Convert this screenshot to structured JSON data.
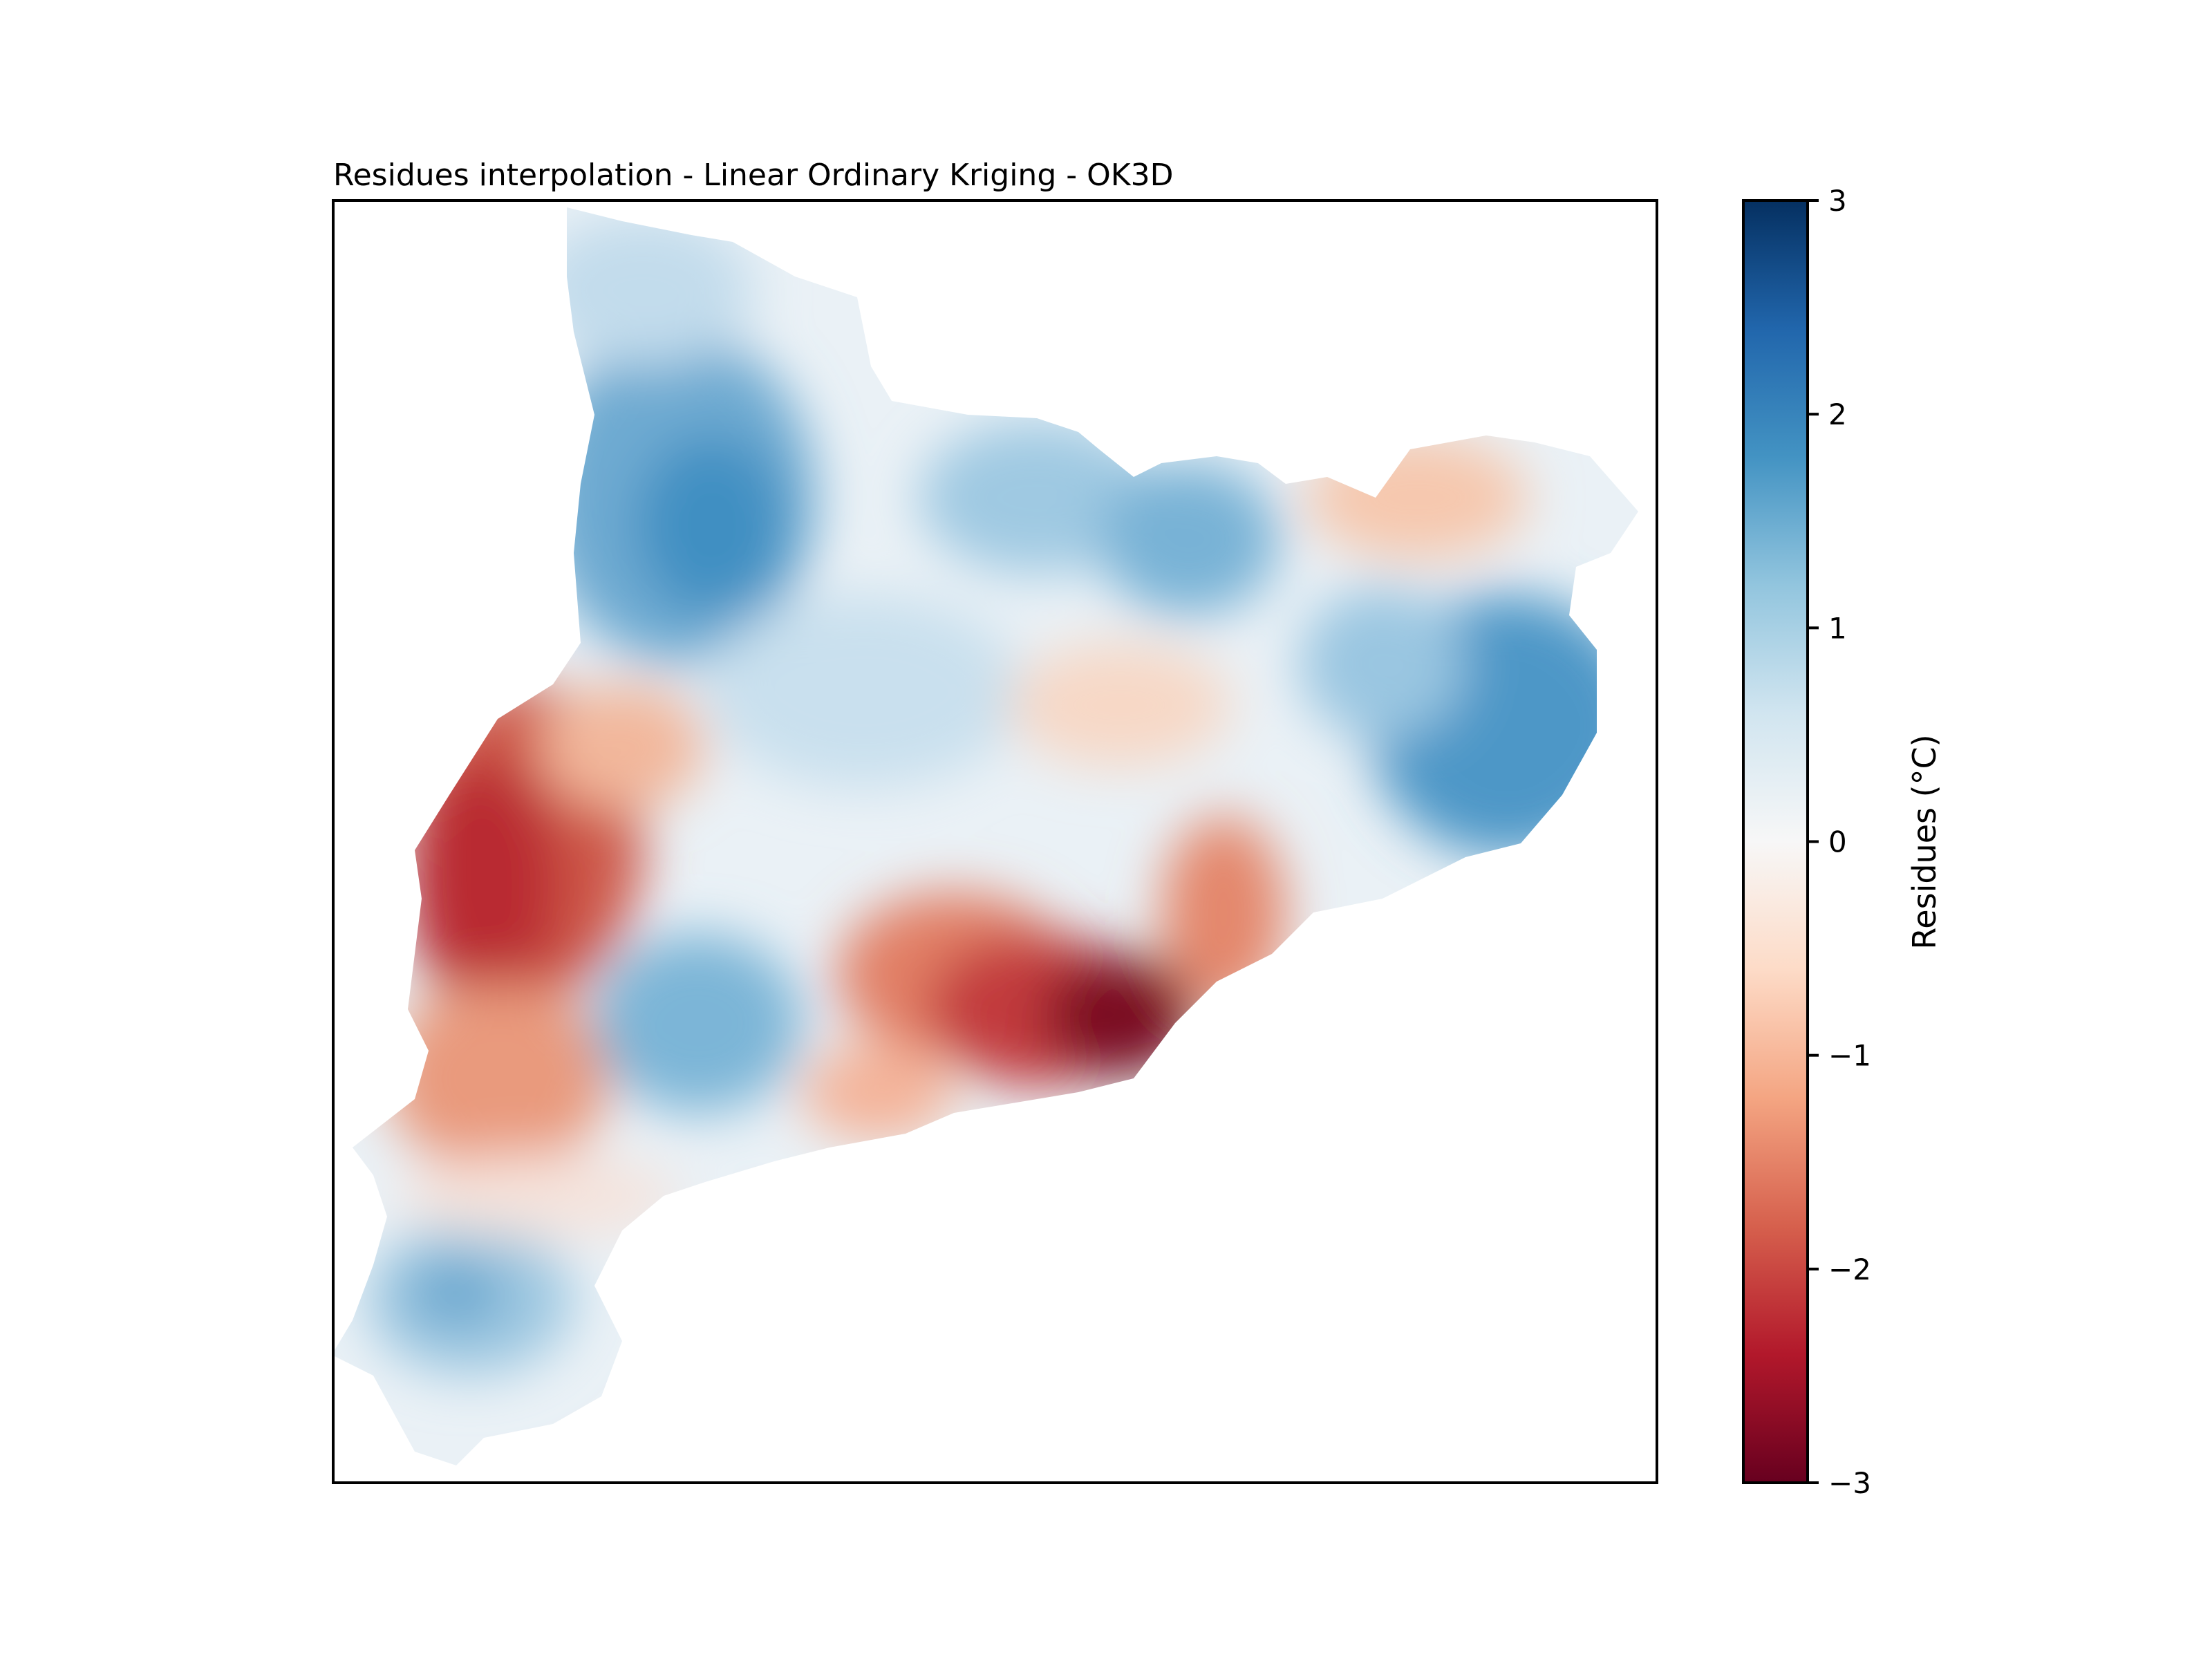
{
  "figure": {
    "title": "Residues interpolation - Linear Ordinary Kriging - OK3D"
  },
  "colorbar": {
    "label": "Residues (°C)",
    "colormap": "RdBu",
    "range": [
      -3,
      3
    ],
    "ticks": [
      {
        "value": 3,
        "label": "3"
      },
      {
        "value": 2,
        "label": "2"
      },
      {
        "value": 1,
        "label": "1"
      },
      {
        "value": 0,
        "label": "0"
      },
      {
        "value": -1,
        "label": "−1"
      },
      {
        "value": -2,
        "label": "−2"
      },
      {
        "value": -3,
        "label": "−3"
      }
    ],
    "stops": [
      "#67001f",
      "#b2182b",
      "#d6604d",
      "#f4a582",
      "#fddbc7",
      "#f7f7f7",
      "#d1e5f0",
      "#92c5de",
      "#4393c3",
      "#2166ac",
      "#053061"
    ]
  },
  "chart_data": {
    "type": "heatmap",
    "title": "Residues interpolation - Linear Ordinary Kriging - OK3D",
    "colorbar_label": "Residues (°C)",
    "value_range": [
      -3,
      3
    ],
    "colorbar_ticks": [
      -3,
      -2,
      -1,
      0,
      1,
      2,
      3
    ],
    "colormap": "RdBu",
    "axes_ticks": "none"
  }
}
